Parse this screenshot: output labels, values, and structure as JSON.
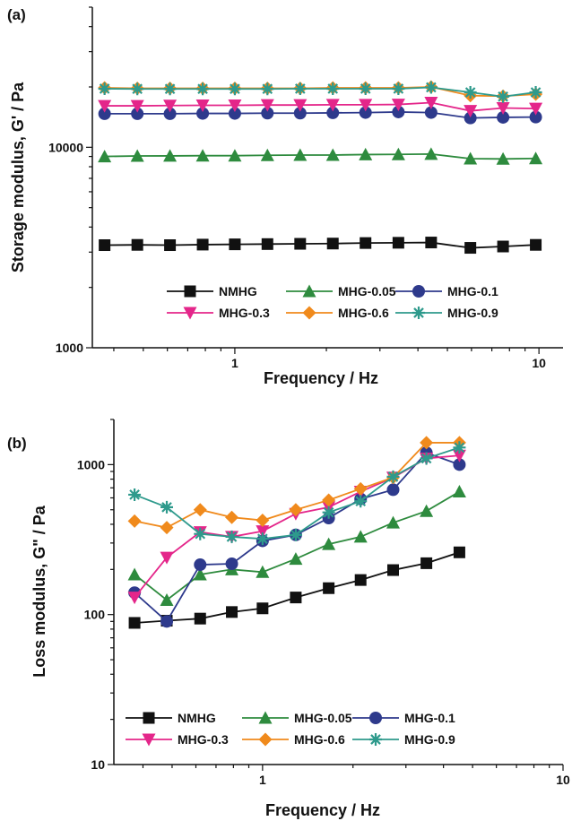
{
  "chart_data": [
    {
      "type": "line",
      "panel_label": "(a)",
      "xlabel": "Frequency / Hz",
      "ylabel": "Storage modulus, G' / Pa",
      "xscale": "log",
      "yscale": "log",
      "xlim": [
        0.34,
        12
      ],
      "ylim": [
        1000,
        50000
      ],
      "xticks": [
        {
          "value": 1,
          "label": "1"
        },
        {
          "value": 10,
          "label": "10"
        }
      ],
      "yticks": [
        {
          "value": 1000,
          "label": "1000"
        },
        {
          "value": 10000,
          "label": "10000"
        }
      ],
      "legend_position": "bottom-center",
      "x": [
        0.373,
        0.478,
        0.612,
        0.784,
        1.0,
        1.28,
        1.64,
        2.1,
        2.69,
        3.45,
        4.42,
        5.95,
        7.62,
        9.76
      ],
      "series": [
        {
          "name": "NMHG",
          "color": "#111111",
          "marker": "square",
          "values": [
            3250,
            3260,
            3250,
            3270,
            3280,
            3290,
            3300,
            3310,
            3330,
            3340,
            3350,
            3150,
            3200,
            3260
          ]
        },
        {
          "name": "MHG-0.05",
          "color": "#2e8b3e",
          "marker": "triangle-up",
          "values": [
            9000,
            9050,
            9060,
            9080,
            9080,
            9120,
            9150,
            9150,
            9200,
            9220,
            9250,
            8780,
            8750,
            8800
          ]
        },
        {
          "name": "MHG-0.1",
          "color": "#2e3a8c",
          "marker": "circle",
          "values": [
            14700,
            14700,
            14700,
            14750,
            14750,
            14800,
            14800,
            14850,
            14900,
            15000,
            14900,
            14000,
            14100,
            14150
          ]
        },
        {
          "name": "MHG-0.3",
          "color": "#e4268a",
          "marker": "triangle-down",
          "values": [
            16100,
            16100,
            16150,
            16200,
            16200,
            16250,
            16250,
            16300,
            16300,
            16350,
            16700,
            15200,
            15700,
            15600
          ]
        },
        {
          "name": "MHG-0.6",
          "color": "#f08a1c",
          "marker": "diamond",
          "values": [
            19800,
            19700,
            19700,
            19700,
            19700,
            19700,
            19700,
            19800,
            19800,
            19800,
            20000,
            18100,
            18000,
            18400
          ]
        },
        {
          "name": "MHG-0.9",
          "color": "#2e9a8c",
          "marker": "star",
          "values": [
            19600,
            19550,
            19550,
            19550,
            19550,
            19550,
            19600,
            19600,
            19600,
            19600,
            19900,
            18800,
            17900,
            18800
          ]
        }
      ]
    },
    {
      "type": "line",
      "panel_label": "(b)",
      "xlabel": "Frequency / Hz",
      "ylabel": "Loss modulus, G\" / Pa",
      "xscale": "log",
      "yscale": "log",
      "xlim": [
        0.32,
        10
      ],
      "ylim": [
        10,
        2000
      ],
      "xticks": [
        {
          "value": 1,
          "label": "1"
        },
        {
          "value": 10,
          "label": "10"
        }
      ],
      "yticks": [
        {
          "value": 10,
          "label": "10"
        },
        {
          "value": 100,
          "label": "100"
        },
        {
          "value": 1000,
          "label": "1000"
        }
      ],
      "legend_position": "bottom-left",
      "x": [
        0.375,
        0.48,
        0.62,
        0.79,
        1.0,
        1.29,
        1.66,
        2.12,
        2.72,
        3.51,
        4.52
      ],
      "series": [
        {
          "name": "NMHG",
          "color": "#111111",
          "marker": "square",
          "values": [
            88,
            91,
            94,
            104,
            110,
            130,
            150,
            170,
            198,
            220,
            260
          ]
        },
        {
          "name": "MHG-0.05",
          "color": "#2e8b3e",
          "marker": "triangle-up",
          "values": [
            185,
            125,
            185,
            200,
            192,
            235,
            295,
            330,
            410,
            490,
            660
          ]
        },
        {
          "name": "MHG-0.1",
          "color": "#2e3a8c",
          "marker": "circle",
          "values": [
            140,
            90,
            215,
            218,
            310,
            340,
            440,
            590,
            680,
            1200,
            1000
          ]
        },
        {
          "name": "MHG-0.3",
          "color": "#e4268a",
          "marker": "triangle-down",
          "values": [
            130,
            240,
            355,
            330,
            360,
            470,
            520,
            660,
            820,
            1100,
            1150
          ]
        },
        {
          "name": "MHG-0.6",
          "color": "#f08a1c",
          "marker": "diamond",
          "values": [
            420,
            380,
            500,
            445,
            425,
            500,
            580,
            690,
            820,
            1400,
            1400
          ]
        },
        {
          "name": "MHG-0.9",
          "color": "#2e9a8c",
          "marker": "star",
          "values": [
            630,
            520,
            345,
            330,
            320,
            340,
            480,
            570,
            830,
            1100,
            1300
          ]
        }
      ]
    }
  ]
}
